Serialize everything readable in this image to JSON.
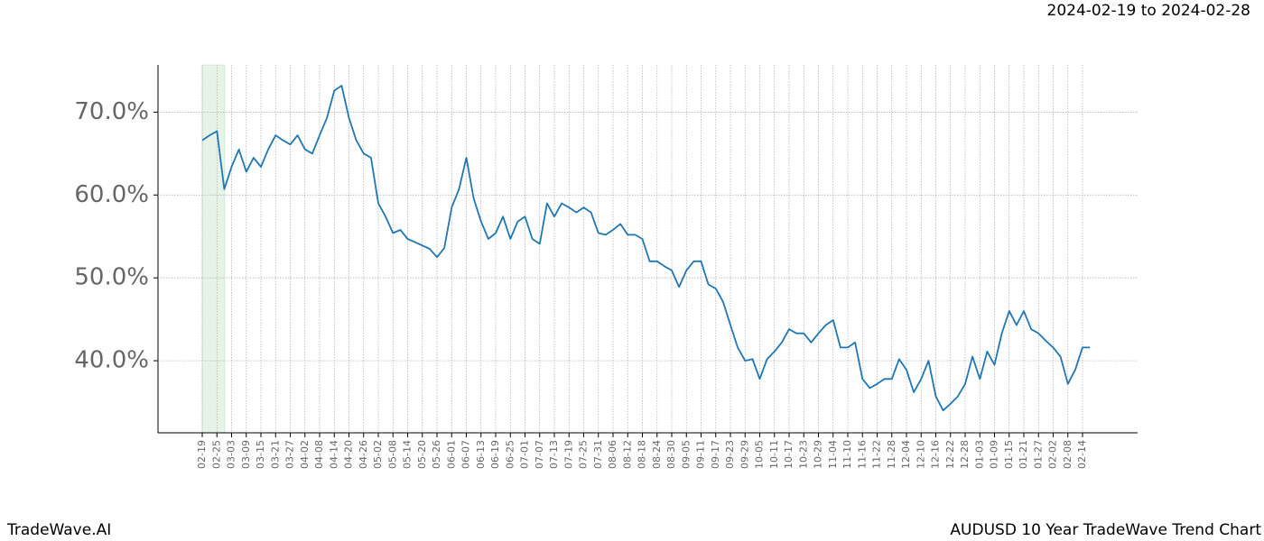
{
  "chart_data": {
    "type": "line",
    "title": "AUDUSD 10 Year TradeWave Trend Chart",
    "date_range": "2024-02-19 to 2024-02-28",
    "brand": "TradeWave.AI",
    "categories": [
      "02-19",
      null,
      "02-25",
      null,
      "03-03",
      null,
      "03-09",
      null,
      "03-15",
      null,
      "03-21",
      null,
      "03-27",
      null,
      "04-02",
      null,
      "04-08",
      null,
      "04-14",
      null,
      "04-20",
      null,
      "04-26",
      null,
      "05-02",
      null,
      "05-08",
      null,
      "05-14",
      null,
      "05-20",
      null,
      "05-26",
      null,
      "06-01",
      null,
      "06-07",
      null,
      "06-13",
      null,
      "06-19",
      null,
      "06-25",
      null,
      "07-01",
      null,
      "07-07",
      null,
      "07-13",
      null,
      "07-19",
      null,
      "07-25",
      null,
      "07-31",
      null,
      "08-06",
      null,
      "08-12",
      null,
      "08-18",
      null,
      "08-24",
      null,
      "08-30",
      null,
      "09-05",
      null,
      "09-11",
      null,
      "09-17",
      null,
      "09-23",
      null,
      "09-29",
      null,
      "10-05",
      null,
      "10-11",
      null,
      "10-17",
      null,
      "10-23",
      null,
      "10-29",
      null,
      "11-04",
      null,
      "11-10",
      null,
      "11-16",
      null,
      "11-22",
      null,
      "11-28",
      null,
      "12-04",
      null,
      "12-10",
      null,
      "12-16",
      null,
      "12-22",
      null,
      "12-28",
      null,
      "01-03",
      null,
      "01-09",
      null,
      "01-15",
      null,
      "01-21",
      null,
      "01-27",
      null,
      "02-02",
      null,
      "02-08",
      null,
      "02-14",
      null
    ],
    "series": [
      {
        "name": "AUDUSD",
        "color": "#1f77b4",
        "values": [
          66.6,
          67.2,
          67.7,
          60.7,
          63.4,
          65.5,
          62.8,
          64.5,
          63.4,
          65.5,
          67.2,
          66.6,
          66.1,
          67.2,
          65.5,
          65,
          67.2,
          69.3,
          72.6,
          73.2,
          69.3,
          66.6,
          65,
          64.5,
          59,
          57.4,
          55.4,
          55.8,
          54.7,
          54.3,
          53.9,
          53.5,
          52.5,
          53.6,
          58.5,
          60.7,
          64.5,
          59.6,
          56.8,
          54.7,
          55.4,
          57.4,
          54.7,
          56.8,
          57.4,
          54.7,
          54.1,
          59,
          57.4,
          59,
          58.5,
          57.9,
          58.5,
          57.9,
          55.4,
          55.2,
          55.8,
          56.5,
          55.2,
          55.2,
          54.7,
          52,
          52,
          51.4,
          50.9,
          48.9,
          50.9,
          52,
          52,
          49.2,
          48.7,
          47.1,
          44.3,
          41.6,
          40,
          40.2,
          37.8,
          40.2,
          41.1,
          42.2,
          43.8,
          43.3,
          43.3,
          42.2,
          43.3,
          44.3,
          44.9,
          41.6,
          41.6,
          42.2,
          37.8,
          36.7,
          37.2,
          37.8,
          37.8,
          40.2,
          38.9,
          36.2,
          37.8,
          40,
          35.7,
          34,
          34.8,
          35.7,
          37.2,
          40.5,
          37.8,
          41.1,
          39.5,
          43.3,
          46,
          44.3,
          46,
          43.8,
          43.3,
          42.4,
          41.6,
          40.5,
          37.2,
          38.9,
          41.6,
          41.6
        ]
      }
    ],
    "ylim": [
      31.3,
      75.7
    ],
    "yticks": [
      {
        "value": 40,
        "label": "40.0%"
      },
      {
        "value": 50,
        "label": "50.0%"
      },
      {
        "value": 60,
        "label": "60.0%"
      },
      {
        "value": 70,
        "label": "70.0%"
      }
    ],
    "grid": true
  }
}
